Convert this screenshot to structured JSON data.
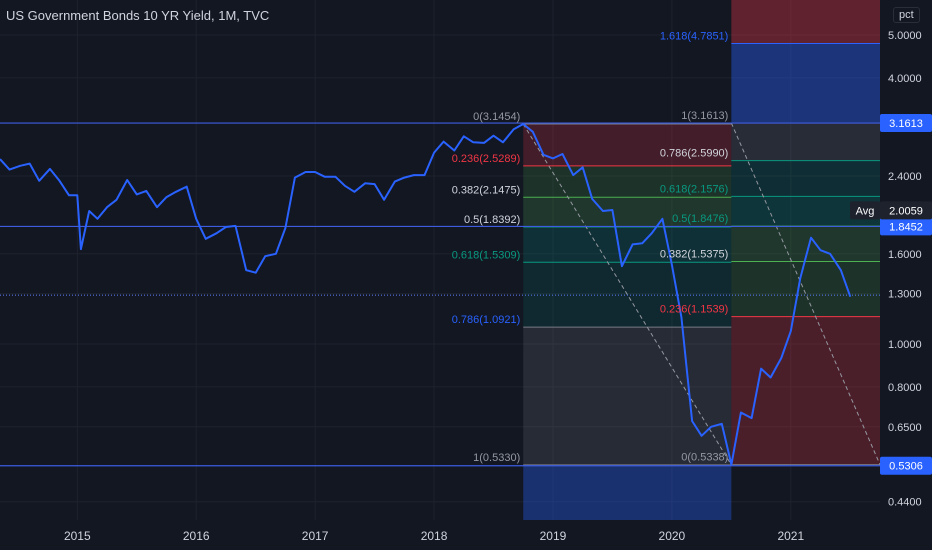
{
  "title": "US Government Bonds 10 YR Yield, 1M, TVC",
  "scale_button": "pct",
  "colors": {
    "background": "#131722",
    "grid": "#1e222d",
    "line": "#2962ff",
    "hline": "#3d5ce0",
    "axis_text": "#d1d4dc",
    "price_badge": "#2962ff"
  },
  "chart_data": {
    "type": "line",
    "scale": "log",
    "ylim": [
      0.4,
      6
    ],
    "xlim": [
      2014.35,
      2021.75
    ],
    "x_ticks": [
      "2015",
      "2016",
      "2017",
      "2018",
      "2019",
      "2020",
      "2021"
    ],
    "y_ticks": [
      "5.0000",
      "4.0000",
      "2.4000",
      "1.6000",
      "1.3000",
      "1.0000",
      "0.8000",
      "0.6500",
      "0.4400"
    ],
    "y_tick_values": [
      5.0,
      4.0,
      2.4,
      1.6,
      1.3,
      1.0,
      0.8,
      0.65,
      0.44
    ],
    "series": [
      {
        "values": [
          [
            2014.35,
            2.62
          ],
          [
            2014.43,
            2.48
          ],
          [
            2014.52,
            2.53
          ],
          [
            2014.6,
            2.56
          ],
          [
            2014.68,
            2.34
          ],
          [
            2014.77,
            2.49
          ],
          [
            2014.85,
            2.34
          ],
          [
            2014.93,
            2.17
          ],
          [
            2015.0,
            2.17
          ],
          [
            2015.03,
            1.64
          ],
          [
            2015.1,
            2.0
          ],
          [
            2015.17,
            1.92
          ],
          [
            2015.25,
            2.04
          ],
          [
            2015.33,
            2.12
          ],
          [
            2015.42,
            2.35
          ],
          [
            2015.5,
            2.18
          ],
          [
            2015.58,
            2.22
          ],
          [
            2015.67,
            2.04
          ],
          [
            2015.75,
            2.15
          ],
          [
            2015.83,
            2.21
          ],
          [
            2015.92,
            2.27
          ],
          [
            2016.0,
            1.92
          ],
          [
            2016.08,
            1.73
          ],
          [
            2016.17,
            1.78
          ],
          [
            2016.25,
            1.84
          ],
          [
            2016.33,
            1.85
          ],
          [
            2016.42,
            1.47
          ],
          [
            2016.5,
            1.45
          ],
          [
            2016.58,
            1.58
          ],
          [
            2016.67,
            1.6
          ],
          [
            2016.75,
            1.83
          ],
          [
            2016.83,
            2.38
          ],
          [
            2016.92,
            2.45
          ],
          [
            2017.0,
            2.45
          ],
          [
            2017.08,
            2.39
          ],
          [
            2017.17,
            2.39
          ],
          [
            2017.25,
            2.28
          ],
          [
            2017.33,
            2.21
          ],
          [
            2017.42,
            2.31
          ],
          [
            2017.5,
            2.3
          ],
          [
            2017.58,
            2.12
          ],
          [
            2017.67,
            2.33
          ],
          [
            2017.75,
            2.38
          ],
          [
            2017.83,
            2.41
          ],
          [
            2017.92,
            2.41
          ],
          [
            2018.0,
            2.71
          ],
          [
            2018.08,
            2.87
          ],
          [
            2018.17,
            2.74
          ],
          [
            2018.25,
            2.95
          ],
          [
            2018.33,
            2.86
          ],
          [
            2018.42,
            2.85
          ],
          [
            2018.5,
            2.96
          ],
          [
            2018.58,
            2.86
          ],
          [
            2018.67,
            3.06
          ],
          [
            2018.75,
            3.1454
          ],
          [
            2018.83,
            3.02
          ],
          [
            2018.92,
            2.68
          ],
          [
            2019.0,
            2.63
          ],
          [
            2019.08,
            2.69
          ],
          [
            2019.17,
            2.41
          ],
          [
            2019.25,
            2.51
          ],
          [
            2019.33,
            2.13
          ],
          [
            2019.42,
            2.0
          ],
          [
            2019.5,
            2.01
          ],
          [
            2019.58,
            1.5
          ],
          [
            2019.67,
            1.68
          ],
          [
            2019.75,
            1.69
          ],
          [
            2019.83,
            1.78
          ],
          [
            2019.92,
            1.92
          ],
          [
            2020.0,
            1.51
          ],
          [
            2020.08,
            1.15
          ],
          [
            2020.17,
            0.67
          ],
          [
            2020.25,
            0.62
          ],
          [
            2020.33,
            0.65
          ],
          [
            2020.42,
            0.66
          ],
          [
            2020.5,
            0.5338
          ],
          [
            2020.58,
            0.7
          ],
          [
            2020.67,
            0.68
          ],
          [
            2020.75,
            0.88
          ],
          [
            2020.83,
            0.84
          ],
          [
            2020.92,
            0.93
          ],
          [
            2021.0,
            1.07
          ],
          [
            2021.08,
            1.41
          ],
          [
            2021.17,
            1.74
          ],
          [
            2021.25,
            1.63
          ],
          [
            2021.33,
            1.6
          ],
          [
            2021.42,
            1.47
          ],
          [
            2021.5,
            1.28
          ]
        ]
      }
    ],
    "horizontal_lines": [
      3.1613,
      1.8452,
      0.5306
    ],
    "dotted_line": 1.29,
    "fib_left": {
      "range": [
        2018.75,
        2020.5
      ],
      "levels": [
        {
          "label": "0(3.1454)",
          "value": 3.1454
        },
        {
          "label": "0.236(2.5289)",
          "value": 2.5289
        },
        {
          "label": "0.382(2.1475)",
          "value": 2.1475
        },
        {
          "label": "0.5(1.8392)",
          "value": 1.8392
        },
        {
          "label": "0.618(1.5309)",
          "value": 1.5309
        },
        {
          "label": "0.786(1.0921)",
          "value": 1.0921
        },
        {
          "label": "1(0.5330)",
          "value": 0.533
        }
      ]
    },
    "fib_right": {
      "range": [
        2020.5,
        2021.75
      ],
      "levels": [
        {
          "label": "1.618(4.7851)",
          "value": 4.7851
        },
        {
          "label": "1(3.1613)",
          "value": 3.1613
        },
        {
          "label": "0.786(2.5990)",
          "value": 2.599
        },
        {
          "label": "0.618(2.1576)",
          "value": 2.1576
        },
        {
          "label": "0.5(1.8476)",
          "value": 1.8476
        },
        {
          "label": "0.382(1.5375)",
          "value": 1.5375
        },
        {
          "label": "0.236(1.1539)",
          "value": 1.1539
        },
        {
          "label": "0(0.5338)",
          "value": 0.5338
        }
      ]
    },
    "price_labels": [
      {
        "label": "3.1613",
        "value": 3.1613
      },
      {
        "label": "1.8452",
        "value": 1.8452
      },
      {
        "label": "0.5306",
        "value": 0.5306
      }
    ],
    "avg_label": {
      "tag": "Avg",
      "label": "2.0059",
      "value": 2.0059
    }
  }
}
